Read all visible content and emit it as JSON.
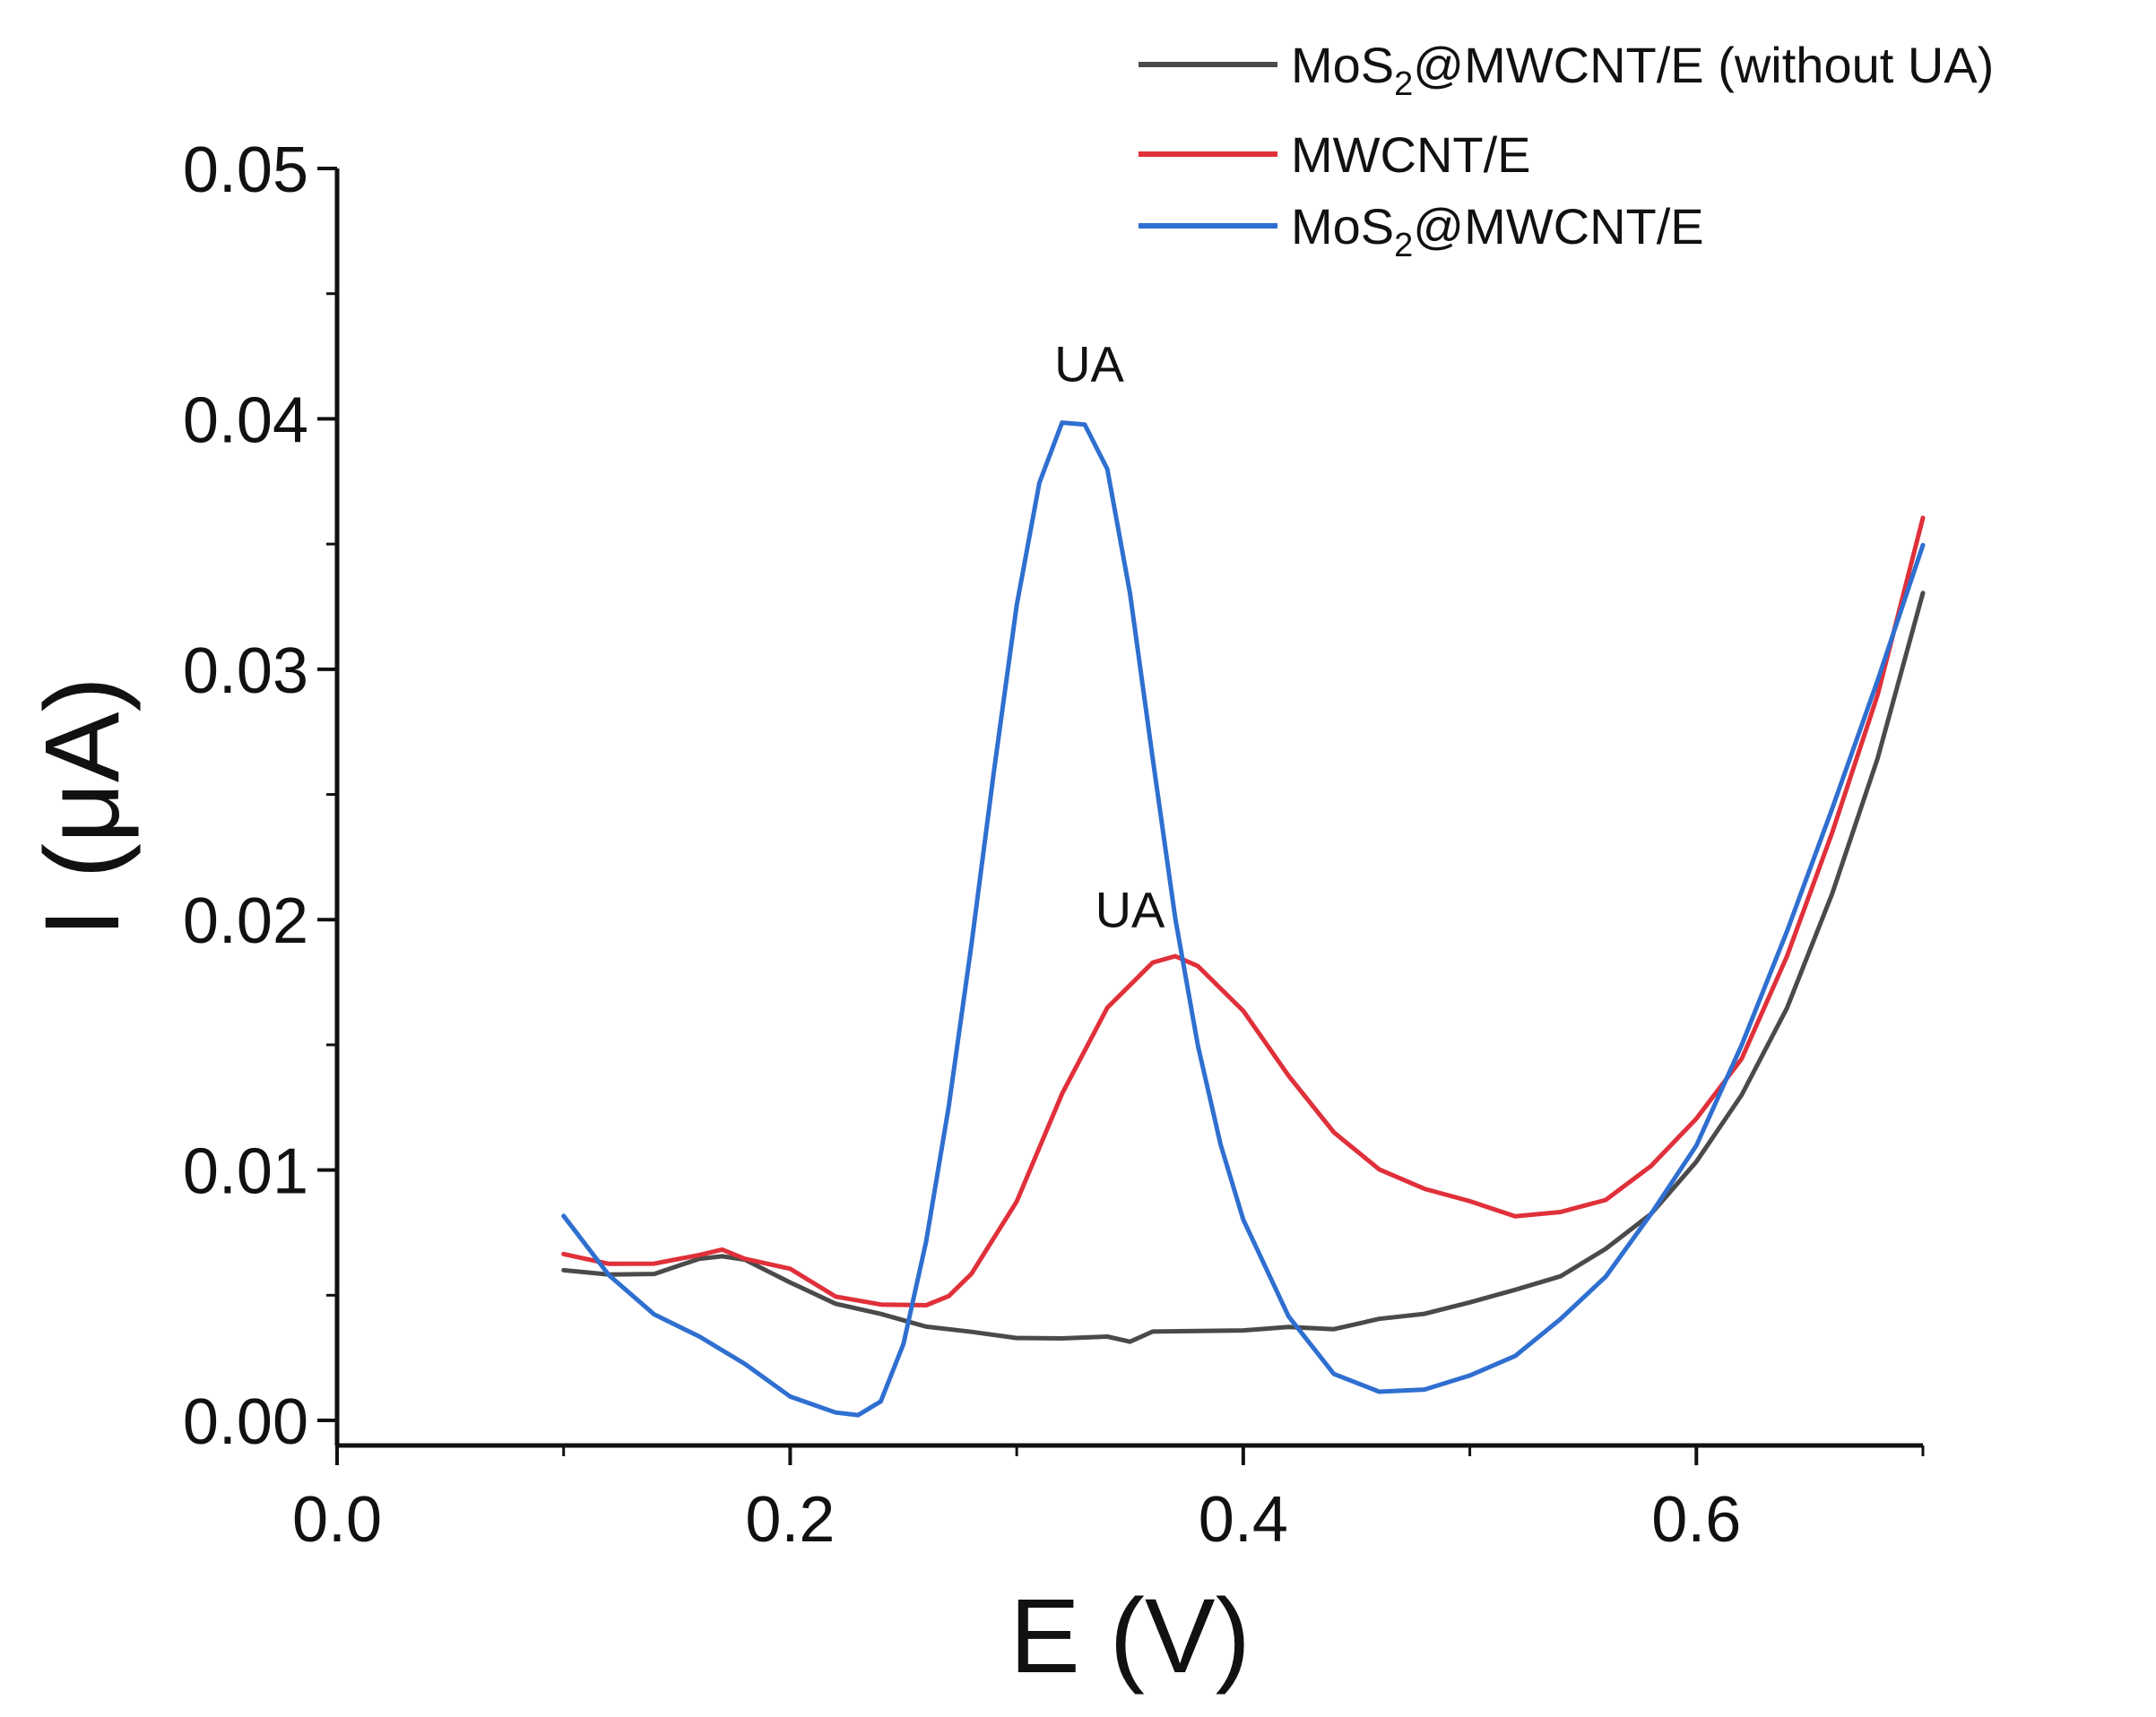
{
  "chart_data": {
    "type": "line",
    "title": "",
    "xlabel": "E (V)",
    "ylabel": "I (μA)",
    "xlim": [
      0.0,
      0.7
    ],
    "ylim": [
      -0.001,
      0.05
    ],
    "x_ticks": [
      0.0,
      0.2,
      0.4,
      0.6
    ],
    "x_tick_labels": [
      "0.0",
      "0.2",
      "0.4",
      "0.6"
    ],
    "y_ticks": [
      0.0,
      0.01,
      0.02,
      0.03,
      0.04,
      0.05
    ],
    "y_tick_labels": [
      "0.00",
      "0.01",
      "0.02",
      "0.03",
      "0.04",
      "0.05"
    ],
    "grid": false,
    "legend_position": "top-right",
    "series": [
      {
        "name": "MoS₂@MWCNT/E (without UA)",
        "legend_main": "MoS",
        "legend_sub": "2",
        "legend_rest": "@MWCNT/E (without UA)",
        "color": "#4a4a4a",
        "x": [
          0.1,
          0.12,
          0.14,
          0.16,
          0.17,
          0.18,
          0.2,
          0.22,
          0.24,
          0.26,
          0.28,
          0.3,
          0.32,
          0.34,
          0.35,
          0.36,
          0.38,
          0.4,
          0.42,
          0.44,
          0.46,
          0.48,
          0.5,
          0.52,
          0.54,
          0.56,
          0.58,
          0.6,
          0.62,
          0.64,
          0.66,
          0.68,
          0.7
        ],
        "y": [
          0.006,
          0.0058,
          0.0059,
          0.0064,
          0.0066,
          0.0064,
          0.0055,
          0.0047,
          0.0042,
          0.0038,
          0.0035,
          0.0033,
          0.0033,
          0.0033,
          0.0032,
          0.0035,
          0.0036,
          0.0036,
          0.0037,
          0.0037,
          0.004,
          0.0043,
          0.0047,
          0.0052,
          0.0058,
          0.0068,
          0.0083,
          0.0103,
          0.013,
          0.0165,
          0.021,
          0.0265,
          0.033
        ]
      },
      {
        "name": "MWCNT/E",
        "legend_main": "MWCNT/E",
        "legend_sub": "",
        "legend_rest": "",
        "color": "#e0303a",
        "x": [
          0.1,
          0.12,
          0.14,
          0.16,
          0.17,
          0.18,
          0.2,
          0.22,
          0.24,
          0.26,
          0.27,
          0.28,
          0.3,
          0.32,
          0.34,
          0.36,
          0.37,
          0.38,
          0.4,
          0.42,
          0.44,
          0.46,
          0.48,
          0.5,
          0.52,
          0.54,
          0.56,
          0.58,
          0.6,
          0.62,
          0.64,
          0.66,
          0.68,
          0.7
        ],
        "y": [
          0.0067,
          0.0062,
          0.0063,
          0.0066,
          0.0068,
          0.0065,
          0.006,
          0.005,
          0.0046,
          0.0046,
          0.005,
          0.0058,
          0.0088,
          0.013,
          0.0165,
          0.0183,
          0.0185,
          0.0182,
          0.0163,
          0.0138,
          0.0115,
          0.01,
          0.0093,
          0.0087,
          0.0082,
          0.0083,
          0.0088,
          0.0102,
          0.012,
          0.0145,
          0.0185,
          0.0235,
          0.029,
          0.036
        ]
      },
      {
        "name": "MoS₂@MWCNT/E",
        "legend_main": "MoS",
        "legend_sub": "2",
        "legend_rest": "@MWCNT/E",
        "color": "#2f6fd0",
        "x": [
          0.1,
          0.12,
          0.14,
          0.16,
          0.18,
          0.2,
          0.22,
          0.23,
          0.24,
          0.25,
          0.26,
          0.27,
          0.28,
          0.29,
          0.3,
          0.31,
          0.32,
          0.33,
          0.34,
          0.35,
          0.36,
          0.37,
          0.38,
          0.39,
          0.4,
          0.42,
          0.44,
          0.46,
          0.48,
          0.5,
          0.52,
          0.54,
          0.56,
          0.58,
          0.6,
          0.62,
          0.64,
          0.66,
          0.68,
          0.7
        ],
        "y": [
          0.0082,
          0.0058,
          0.0042,
          0.0034,
          0.0022,
          0.001,
          0.0003,
          0.0002,
          0.0008,
          0.003,
          0.0072,
          0.0125,
          0.019,
          0.026,
          0.0325,
          0.0375,
          0.0398,
          0.0398,
          0.038,
          0.033,
          0.0265,
          0.02,
          0.015,
          0.011,
          0.008,
          0.0042,
          0.0018,
          0.0012,
          0.0012,
          0.0018,
          0.0026,
          0.004,
          0.0058,
          0.0082,
          0.011,
          0.015,
          0.0195,
          0.0245,
          0.0295,
          0.035
        ]
      }
    ],
    "annotations": [
      {
        "text": "UA",
        "x": 0.332,
        "y": 0.0415
      },
      {
        "text": "UA",
        "x": 0.35,
        "y": 0.0197
      }
    ]
  }
}
